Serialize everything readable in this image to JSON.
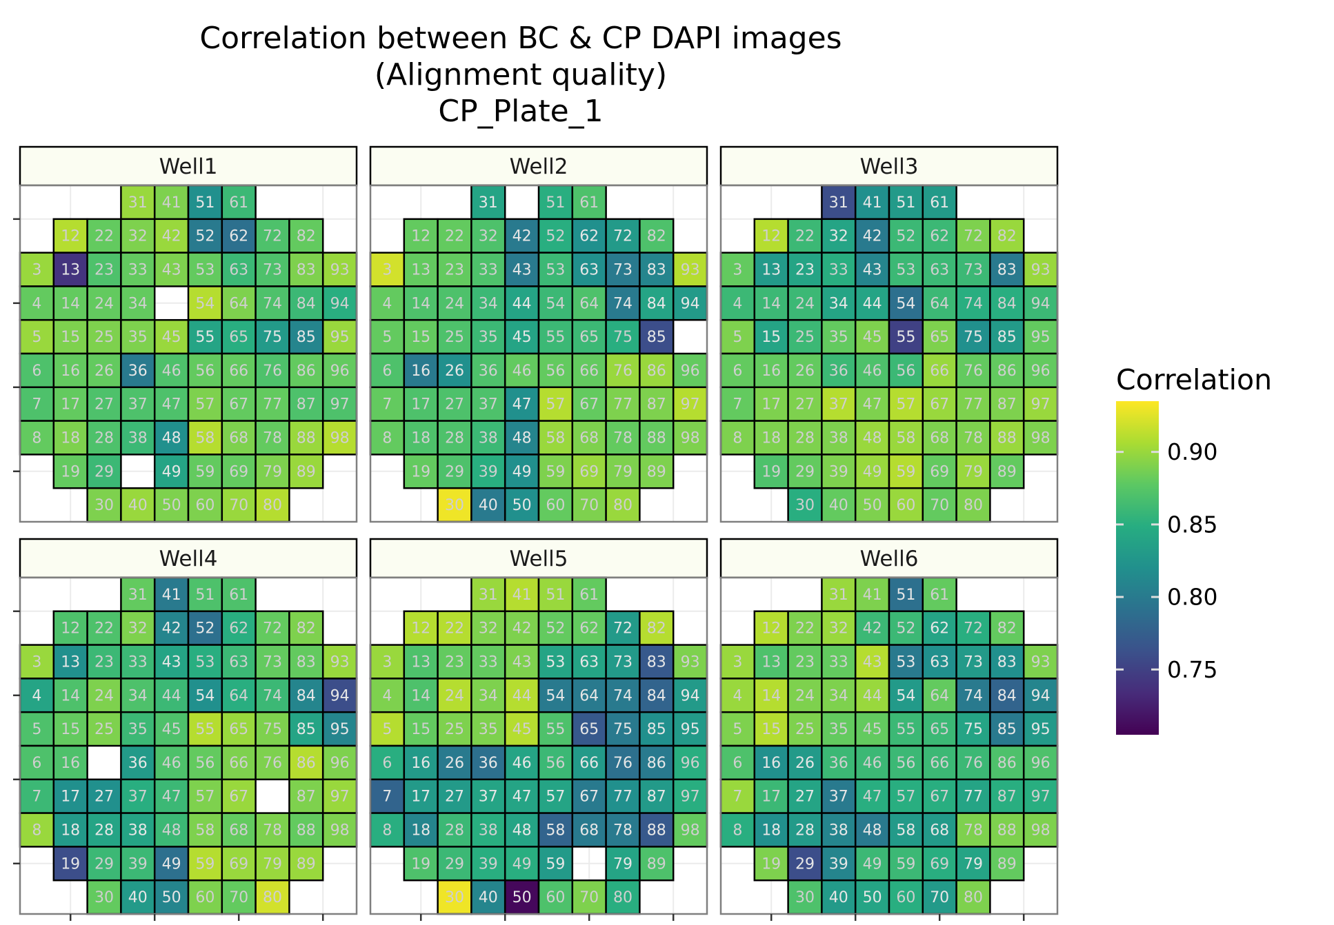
{
  "title": [
    "Correlation between BC & CP DAPI images",
    "(Alignment quality)",
    "CP_Plate_1"
  ],
  "colors": {
    "viridis": [
      "#440154",
      "#472c7a",
      "#3b518b",
      "#2c718e",
      "#21908d",
      "#27ad81",
      "#5cc863",
      "#aadc32",
      "#fde725"
    ],
    "strip_fill": "#fbfdf2",
    "grid": "#ebebeb",
    "panel_border": "#7f7f7f",
    "tile_border": "#000000",
    "label_light": "#e6e6e6",
    "label_dark": "#cfcfcf"
  },
  "chart_data": {
    "type": "heatmap",
    "title": "Correlation between BC & CP DAPI images\n(Alignment quality)\nCP_Plate_1",
    "fill_label": "Correlation",
    "color_scale": "viridis",
    "color_limits": [
      0.705,
      0.935
    ],
    "legend": {
      "title": "Correlation",
      "position": "right",
      "breaks": [
        0.75,
        0.8,
        0.85,
        0.9
      ],
      "labels": [
        "0.75",
        "0.80",
        "0.85",
        "0.90"
      ]
    },
    "grid": true,
    "panels": [
      {
        "name": "Well1",
        "missing": [
          44,
          39
        ],
        "values": {
          "31": 0.9,
          "41": 0.89,
          "51": 0.82,
          "61": 0.86,
          "12": 0.91,
          "22": 0.88,
          "32": 0.89,
          "42": 0.9,
          "52": 0.8,
          "62": 0.79,
          "72": 0.87,
          "82": 0.88,
          "3": 0.9,
          "13": 0.74,
          "23": 0.87,
          "33": 0.88,
          "43": 0.89,
          "53": 0.88,
          "63": 0.86,
          "73": 0.87,
          "83": 0.89,
          "93": 0.9,
          "4": 0.88,
          "14": 0.88,
          "24": 0.88,
          "34": 0.88,
          "54": 0.91,
          "64": 0.89,
          "74": 0.87,
          "84": 0.86,
          "94": 0.85,
          "5": 0.9,
          "15": 0.89,
          "25": 0.89,
          "35": 0.89,
          "45": 0.9,
          "55": 0.84,
          "65": 0.85,
          "75": 0.83,
          "85": 0.81,
          "95": 0.9,
          "6": 0.87,
          "16": 0.88,
          "26": 0.88,
          "36": 0.8,
          "46": 0.87,
          "56": 0.88,
          "66": 0.88,
          "76": 0.87,
          "86": 0.88,
          "96": 0.88,
          "7": 0.87,
          "17": 0.88,
          "27": 0.87,
          "37": 0.87,
          "47": 0.87,
          "57": 0.89,
          "67": 0.88,
          "77": 0.88,
          "87": 0.87,
          "97": 0.87,
          "8": 0.88,
          "18": 0.89,
          "28": 0.87,
          "38": 0.86,
          "48": 0.82,
          "58": 0.91,
          "68": 0.89,
          "78": 0.88,
          "88": 0.9,
          "98": 0.91,
          "19": 0.88,
          "29": 0.86,
          "49": 0.84,
          "59": 0.88,
          "69": 0.88,
          "79": 0.89,
          "89": 0.9,
          "30": 0.89,
          "40": 0.9,
          "50": 0.89,
          "60": 0.89,
          "70": 0.9,
          "80": 0.91
        }
      },
      {
        "name": "Well2",
        "missing": [
          41,
          95
        ],
        "values": {
          "31": 0.84,
          "51": 0.85,
          "61": 0.87,
          "12": 0.88,
          "22": 0.88,
          "32": 0.87,
          "42": 0.8,
          "52": 0.85,
          "62": 0.82,
          "72": 0.83,
          "82": 0.87,
          "3": 0.92,
          "13": 0.88,
          "23": 0.88,
          "33": 0.87,
          "43": 0.8,
          "53": 0.86,
          "63": 0.82,
          "73": 0.8,
          "83": 0.81,
          "93": 0.91,
          "4": 0.88,
          "14": 0.87,
          "24": 0.87,
          "34": 0.86,
          "44": 0.84,
          "54": 0.86,
          "64": 0.87,
          "74": 0.8,
          "84": 0.84,
          "94": 0.83,
          "5": 0.88,
          "15": 0.88,
          "25": 0.87,
          "35": 0.86,
          "45": 0.84,
          "55": 0.86,
          "65": 0.86,
          "75": 0.85,
          "85": 0.76,
          "6": 0.87,
          "16": 0.8,
          "26": 0.82,
          "36": 0.87,
          "46": 0.88,
          "56": 0.88,
          "66": 0.88,
          "76": 0.9,
          "86": 0.9,
          "96": 0.88,
          "7": 0.88,
          "17": 0.87,
          "27": 0.87,
          "37": 0.87,
          "47": 0.82,
          "57": 0.91,
          "67": 0.88,
          "77": 0.89,
          "87": 0.89,
          "97": 0.91,
          "8": 0.88,
          "18": 0.87,
          "28": 0.87,
          "38": 0.86,
          "48": 0.81,
          "58": 0.9,
          "68": 0.89,
          "78": 0.88,
          "88": 0.88,
          "98": 0.89,
          "19": 0.88,
          "29": 0.87,
          "39": 0.85,
          "49": 0.82,
          "59": 0.89,
          "69": 0.9,
          "79": 0.89,
          "89": 0.89,
          "30": 0.93,
          "40": 0.8,
          "50": 0.82,
          "60": 0.88,
          "70": 0.89,
          "80": 0.9
        }
      },
      {
        "name": "Well3",
        "missing": [],
        "values": {
          "31": 0.76,
          "41": 0.82,
          "51": 0.83,
          "61": 0.83,
          "12": 0.91,
          "22": 0.86,
          "32": 0.84,
          "42": 0.8,
          "52": 0.86,
          "62": 0.86,
          "72": 0.89,
          "82": 0.9,
          "3": 0.88,
          "13": 0.83,
          "23": 0.84,
          "33": 0.85,
          "43": 0.81,
          "53": 0.86,
          "63": 0.86,
          "73": 0.86,
          "83": 0.8,
          "93": 0.9,
          "4": 0.86,
          "14": 0.86,
          "24": 0.86,
          "34": 0.84,
          "44": 0.84,
          "54": 0.79,
          "64": 0.86,
          "74": 0.85,
          "84": 0.85,
          "94": 0.86,
          "5": 0.89,
          "15": 0.84,
          "25": 0.86,
          "35": 0.88,
          "45": 0.89,
          "55": 0.75,
          "65": 0.89,
          "75": 0.82,
          "85": 0.83,
          "95": 0.88,
          "6": 0.88,
          "16": 0.88,
          "26": 0.88,
          "36": 0.86,
          "46": 0.87,
          "56": 0.86,
          "66": 0.9,
          "76": 0.88,
          "86": 0.88,
          "96": 0.88,
          "7": 0.88,
          "17": 0.89,
          "27": 0.89,
          "37": 0.91,
          "47": 0.89,
          "57": 0.91,
          "67": 0.9,
          "77": 0.89,
          "87": 0.89,
          "97": 0.9,
          "8": 0.89,
          "18": 0.89,
          "28": 0.89,
          "38": 0.89,
          "48": 0.9,
          "58": 0.9,
          "68": 0.89,
          "78": 0.89,
          "88": 0.9,
          "98": 0.89,
          "19": 0.87,
          "29": 0.88,
          "39": 0.89,
          "49": 0.9,
          "59": 0.91,
          "69": 0.88,
          "79": 0.9,
          "89": 0.88,
          "30": 0.85,
          "40": 0.88,
          "50": 0.89,
          "60": 0.9,
          "70": 0.88,
          "80": 0.89
        }
      },
      {
        "name": "Well4",
        "missing": [
          26,
          77
        ],
        "values": {
          "31": 0.88,
          "41": 0.8,
          "51": 0.87,
          "61": 0.87,
          "12": 0.87,
          "22": 0.87,
          "32": 0.89,
          "42": 0.81,
          "52": 0.79,
          "62": 0.85,
          "72": 0.88,
          "82": 0.89,
          "3": 0.9,
          "13": 0.82,
          "23": 0.86,
          "33": 0.86,
          "43": 0.84,
          "53": 0.85,
          "63": 0.86,
          "73": 0.88,
          "83": 0.88,
          "93": 0.9,
          "4": 0.84,
          "14": 0.87,
          "24": 0.89,
          "34": 0.87,
          "44": 0.86,
          "54": 0.82,
          "64": 0.85,
          "74": 0.86,
          "84": 0.81,
          "94": 0.76,
          "5": 0.87,
          "15": 0.88,
          "25": 0.89,
          "35": 0.86,
          "45": 0.87,
          "55": 0.91,
          "65": 0.9,
          "75": 0.89,
          "85": 0.84,
          "95": 0.81,
          "6": 0.87,
          "16": 0.87,
          "36": 0.83,
          "46": 0.87,
          "56": 0.88,
          "66": 0.89,
          "76": 0.89,
          "86": 0.91,
          "96": 0.89,
          "7": 0.86,
          "17": 0.82,
          "27": 0.82,
          "37": 0.85,
          "47": 0.86,
          "57": 0.89,
          "67": 0.9,
          "87": 0.89,
          "97": 0.9,
          "8": 0.9,
          "18": 0.83,
          "28": 0.84,
          "38": 0.84,
          "48": 0.86,
          "58": 0.89,
          "68": 0.88,
          "78": 0.89,
          "88": 0.88,
          "98": 0.89,
          "19": 0.76,
          "29": 0.86,
          "39": 0.86,
          "49": 0.79,
          "59": 0.91,
          "69": 0.9,
          "79": 0.9,
          "89": 0.9,
          "30": 0.88,
          "40": 0.83,
          "50": 0.81,
          "60": 0.89,
          "70": 0.88,
          "80": 0.92
        }
      },
      {
        "name": "Well5",
        "missing": [
          69
        ],
        "values": {
          "31": 0.9,
          "41": 0.91,
          "51": 0.9,
          "61": 0.88,
          "12": 0.91,
          "22": 0.91,
          "32": 0.89,
          "42": 0.89,
          "52": 0.88,
          "62": 0.88,
          "72": 0.83,
          "82": 0.91,
          "3": 0.9,
          "13": 0.87,
          "23": 0.88,
          "33": 0.88,
          "43": 0.89,
          "53": 0.84,
          "63": 0.84,
          "73": 0.83,
          "83": 0.77,
          "93": 0.89,
          "4": 0.89,
          "14": 0.87,
          "24": 0.91,
          "34": 0.89,
          "44": 0.91,
          "54": 0.8,
          "64": 0.8,
          "74": 0.8,
          "84": 0.78,
          "94": 0.83,
          "5": 0.91,
          "15": 0.88,
          "25": 0.89,
          "35": 0.89,
          "45": 0.91,
          "55": 0.87,
          "65": 0.77,
          "75": 0.8,
          "85": 0.82,
          "95": 0.83,
          "6": 0.85,
          "16": 0.83,
          "26": 0.8,
          "36": 0.79,
          "46": 0.84,
          "56": 0.86,
          "66": 0.83,
          "76": 0.79,
          "86": 0.8,
          "96": 0.85,
          "7": 0.78,
          "17": 0.83,
          "27": 0.83,
          "37": 0.84,
          "47": 0.84,
          "57": 0.84,
          "67": 0.8,
          "77": 0.82,
          "87": 0.83,
          "97": 0.85,
          "8": 0.85,
          "18": 0.81,
          "28": 0.86,
          "38": 0.85,
          "48": 0.84,
          "58": 0.78,
          "68": 0.8,
          "78": 0.8,
          "88": 0.77,
          "98": 0.88,
          "19": 0.87,
          "29": 0.86,
          "39": 0.85,
          "49": 0.85,
          "59": 0.83,
          "79": 0.84,
          "89": 0.87,
          "30": 0.93,
          "40": 0.81,
          "50": 0.71,
          "60": 0.87,
          "70": 0.89,
          "80": 0.85
        }
      },
      {
        "name": "Well6",
        "missing": [],
        "values": {
          "31": 0.9,
          "41": 0.89,
          "51": 0.79,
          "61": 0.88,
          "12": 0.91,
          "22": 0.89,
          "32": 0.9,
          "42": 0.86,
          "52": 0.86,
          "62": 0.84,
          "72": 0.85,
          "82": 0.88,
          "3": 0.9,
          "13": 0.87,
          "23": 0.88,
          "33": 0.88,
          "43": 0.91,
          "53": 0.8,
          "63": 0.82,
          "73": 0.83,
          "83": 0.82,
          "93": 0.89,
          "4": 0.9,
          "14": 0.91,
          "24": 0.89,
          "34": 0.89,
          "44": 0.9,
          "54": 0.83,
          "64": 0.88,
          "74": 0.8,
          "84": 0.78,
          "94": 0.81,
          "5": 0.89,
          "15": 0.91,
          "25": 0.89,
          "35": 0.88,
          "45": 0.88,
          "55": 0.86,
          "65": 0.86,
          "75": 0.84,
          "85": 0.8,
          "95": 0.83,
          "6": 0.87,
          "16": 0.82,
          "26": 0.83,
          "36": 0.86,
          "46": 0.86,
          "56": 0.86,
          "66": 0.86,
          "76": 0.86,
          "86": 0.87,
          "96": 0.87,
          "7": 0.9,
          "17": 0.86,
          "27": 0.84,
          "37": 0.8,
          "47": 0.85,
          "57": 0.85,
          "67": 0.85,
          "77": 0.84,
          "87": 0.85,
          "97": 0.85,
          "8": 0.85,
          "18": 0.82,
          "28": 0.83,
          "38": 0.81,
          "48": 0.8,
          "58": 0.83,
          "68": 0.83,
          "78": 0.89,
          "88": 0.89,
          "98": 0.89,
          "19": 0.89,
          "29": 0.76,
          "39": 0.81,
          "49": 0.86,
          "59": 0.86,
          "69": 0.85,
          "79": 0.84,
          "89": 0.88,
          "30": 0.87,
          "40": 0.83,
          "50": 0.84,
          "60": 0.85,
          "70": 0.83,
          "80": 0.89
        }
      }
    ]
  }
}
